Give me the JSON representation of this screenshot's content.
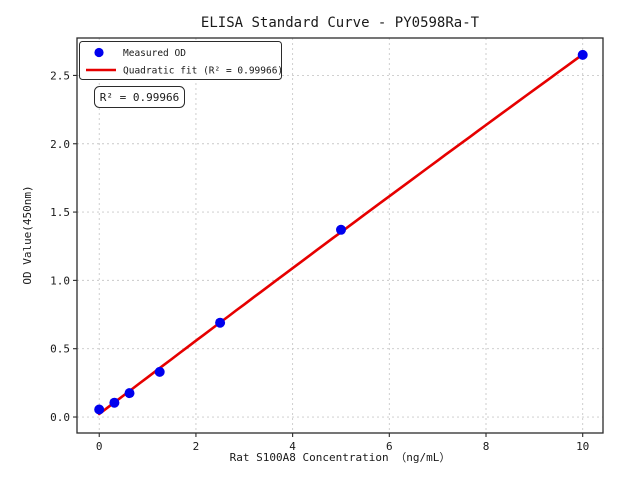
{
  "chart_data": {
    "type": "scatter",
    "title": "ELISA Standard Curve - PY0598Ra-T",
    "xlabel": "Rat S100A8 Concentration （ng/mL）",
    "ylabel": "OD Value(450nm)",
    "x_ticks": [
      0,
      2,
      4,
      6,
      8,
      10
    ],
    "x_tick_labels": [
      "0",
      "2",
      "4",
      "6",
      "8",
      "10"
    ],
    "y_ticks": [
      0.0,
      0.5,
      1.0,
      1.5,
      2.0,
      2.5
    ],
    "y_tick_labels": [
      "0.0",
      "0.5",
      "1.0",
      "1.5",
      "2.0",
      "2.5"
    ],
    "xlim": [
      -0.46,
      10.42
    ],
    "ylim": [
      -0.117,
      2.774
    ],
    "grid": true,
    "annotation": "R² = 0.99966",
    "legend": {
      "position": "upper left",
      "entries": [
        {
          "label": "Measured OD",
          "marker": "dot",
          "color": "#0000ee"
        },
        {
          "label": "Quadratic fit (R² = 0.99966)",
          "marker": "line",
          "color": "#e60000"
        }
      ]
    },
    "series": [
      {
        "name": "Measured OD",
        "type": "scatter",
        "color": "#0000ee",
        "x": [
          0,
          0.313,
          0.625,
          1.25,
          2.5,
          5,
          10
        ],
        "y": [
          0.055,
          0.105,
          0.175,
          0.33,
          0.69,
          1.37,
          2.65
        ]
      },
      {
        "name": "Quadratic fit (R² = 0.99966)",
        "type": "quadratic_fit",
        "color": "#e60000",
        "fit_of": "Measured OD",
        "r_squared": 0.99966,
        "x_range": [
          0,
          10
        ]
      }
    ],
    "colors": {
      "background": "#ffffff",
      "grid": "#c9c9c9",
      "spine": "#2b2b2b",
      "text": "#1a1a1a"
    }
  }
}
